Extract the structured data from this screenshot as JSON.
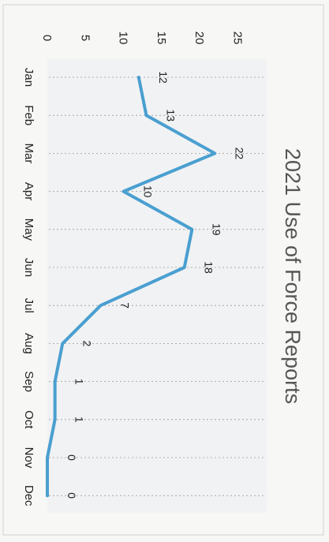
{
  "chart_data": {
    "type": "line",
    "title": "2021 Use of Force Reports",
    "categories": [
      "Jan",
      "Feb",
      "Mar",
      "Apr",
      "May",
      "Jun",
      "Jul",
      "Aug",
      "Sep",
      "Oct",
      "Nov",
      "Dec"
    ],
    "values": [
      12,
      13,
      22,
      10,
      19,
      18,
      7,
      2,
      1,
      1,
      0,
      0
    ],
    "data_labels": [
      "12",
      "13",
      "22",
      "10",
      "19",
      "18",
      "7",
      "2",
      "1",
      "1",
      "0",
      "0"
    ],
    "y_ticks": [
      "0",
      "5",
      "10",
      "15",
      "20",
      "25"
    ],
    "ylim": [
      0,
      25
    ],
    "line_color": "#4a9fd0",
    "grid": "dotted vertical guides at each category",
    "legend": "none"
  }
}
